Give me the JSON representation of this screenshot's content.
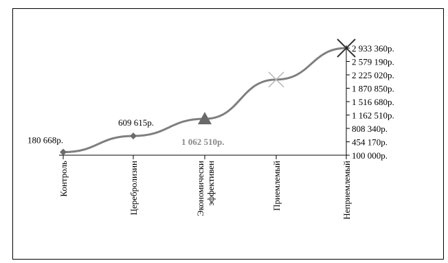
{
  "chart_data": {
    "type": "line",
    "categories": [
      [
        "Контроль"
      ],
      [
        "Церебролизин"
      ],
      [
        "Экономически",
        "эффективен"
      ],
      [
        "Приемлемый"
      ],
      [
        "Неприемлемый"
      ]
    ],
    "values": [
      180668,
      609615,
      1062510,
      2100000,
      2933360
    ],
    "markers": [
      "diamond",
      "diamond",
      "triangle",
      "x",
      "x"
    ],
    "data_labels": [
      "180 668р.",
      "609 615р.",
      "1 062 510р.",
      "",
      ""
    ],
    "yticks": [
      "100 000р.",
      "454 170р.",
      "808 340р.",
      "1 162 510р.",
      "1 516 680р.",
      "1 870 850р.",
      "2 225 020р.",
      "2 579 190р.",
      "2 933 360р."
    ],
    "ylim": [
      100000,
      2933360
    ],
    "yaxis_position": "right",
    "grid": false,
    "legend": "none",
    "colors": {
      "line": "#7f7f7f",
      "axis": "#000000",
      "marker": "#6b6b6b"
    }
  }
}
